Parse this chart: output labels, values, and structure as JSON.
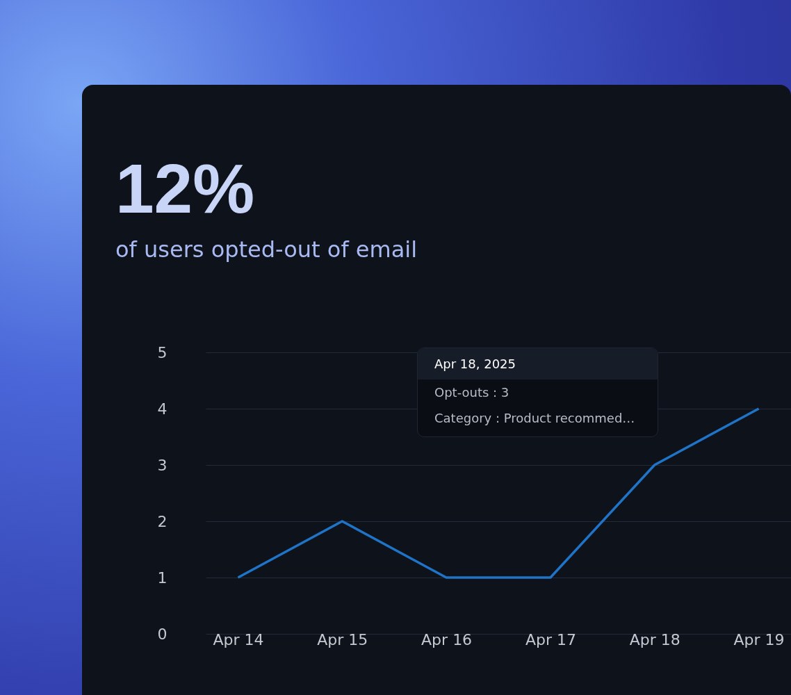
{
  "chart_data": {
    "type": "line",
    "title": "12%",
    "subtitle": "of users opted-out of email",
    "categories": [
      "Apr 14",
      "Apr 15",
      "Apr 16",
      "Apr 17",
      "Apr 18",
      "Apr 19"
    ],
    "series": [
      {
        "color": "#1f74c8",
        "values": [
          1,
          2,
          1,
          1,
          3,
          4
        ]
      }
    ],
    "ylim": [
      0,
      5
    ],
    "yticks": [
      0,
      1,
      2,
      3,
      4,
      5
    ],
    "grid": "y",
    "marker": "none",
    "line_style": "solid",
    "annotations": [
      "Apr 18, 2025",
      "Opt-outs : 3",
      "Category : Product recommed…"
    ]
  }
}
